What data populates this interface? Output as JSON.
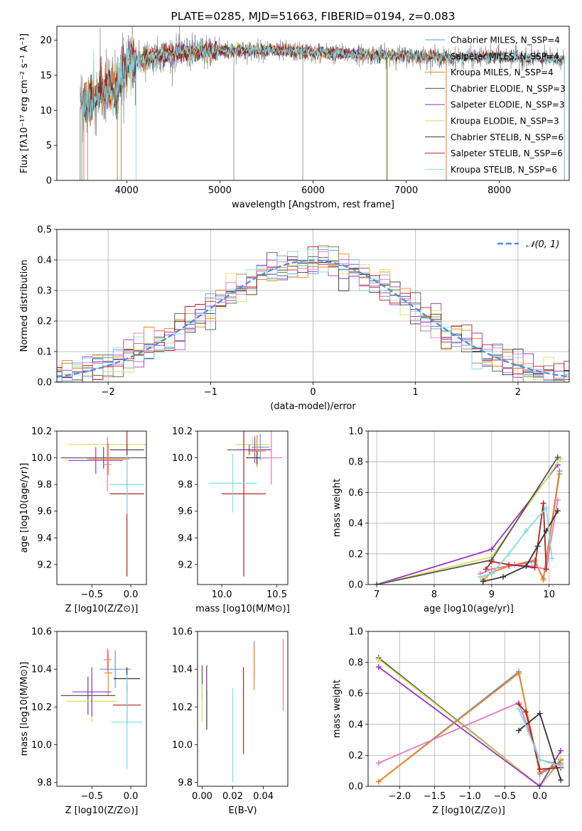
{
  "chart_data": [
    {
      "type": "line",
      "title": "PLATE=0285, MJD=51663, FIBERID=0194, z=0.083",
      "xlabel": "wavelength [Angstrom, rest frame]",
      "ylabel": "Flux [fλ10⁻¹⁷ erg cm⁻² s⁻¹ A⁻¹]",
      "xlim": [
        3250,
        8750
      ],
      "ylim": [
        0,
        22
      ],
      "xticks": [
        4000,
        5000,
        6000,
        7000,
        8000
      ],
      "yticks": [
        0,
        5,
        10,
        15,
        20
      ],
      "grid": false,
      "legend_loc": "right",
      "spectrum_profile": [
        {
          "x": 3500,
          "y": 10.5
        },
        {
          "x": 3700,
          "y": 12.5
        },
        {
          "x": 3900,
          "y": 13.5
        },
        {
          "x": 4000,
          "y": 16.5
        },
        {
          "x": 4200,
          "y": 17.5
        },
        {
          "x": 4500,
          "y": 18.2
        },
        {
          "x": 5000,
          "y": 18.5
        },
        {
          "x": 5500,
          "y": 18.6
        },
        {
          "x": 6000,
          "y": 18.2
        },
        {
          "x": 6500,
          "y": 18.0
        },
        {
          "x": 7000,
          "y": 17.8
        },
        {
          "x": 7500,
          "y": 17.5
        },
        {
          "x": 8000,
          "y": 17.7
        },
        {
          "x": 8500,
          "y": 17.3
        }
      ],
      "series": [
        {
          "name": "Chabrier MILES, N_SSP=4",
          "color": "#6495ed",
          "x_range": [
            3540,
            7430
          ]
        },
        {
          "name": "Salpeter MILES, N_SSP=4",
          "color": "#808080",
          "x_range": [
            3500,
            8700
          ]
        },
        {
          "name": "Kroupa MILES, N_SSP=4",
          "color": "#ff7f0e",
          "x_range": [
            3540,
            7430
          ]
        },
        {
          "name": "Chabrier ELODIE, N_SSP=3",
          "color": "#555555",
          "x_range": [
            3900,
            6800
          ]
        },
        {
          "name": "Salpeter ELODIE, N_SSP=3",
          "color": "#9932cc",
          "x_range": [
            3900,
            6800
          ]
        },
        {
          "name": "Kroupa ELODIE, N_SSP=3",
          "color": "#d4e157",
          "x_range": [
            3900,
            6800
          ]
        },
        {
          "name": "Chabrier STELIB, N_SSP=6",
          "color": "#333333",
          "x_range": [
            3520,
            8700
          ]
        },
        {
          "name": "Salpeter STELIB, N_SSP=6",
          "color": "#b22222",
          "x_range": [
            3520,
            8700
          ]
        },
        {
          "name": "Kroupa STELIB, N_SSP=6",
          "color": "#7fdfe3",
          "x_range": [
            3520,
            8700
          ]
        }
      ]
    },
    {
      "type": "line",
      "xlabel": "(data-model)/error",
      "ylabel": "Normed distribution",
      "xlim": [
        -2.5,
        2.5
      ],
      "ylim": [
        0,
        0.5
      ],
      "xticks": [
        -2,
        -1,
        0,
        1,
        2
      ],
      "yticks": [
        0.0,
        0.1,
        0.2,
        0.3,
        0.4,
        0.5
      ],
      "grid": true,
      "legend_loc": "top-right",
      "gaussian": {
        "name": "𝒩(0, 1)",
        "mean": 0,
        "sigma": 1,
        "color": "#4a90e2"
      },
      "histogram_bin_width": 0.1
    },
    {
      "type": "scatter",
      "xlabel": "Z [log10(Z/Z⊙)]",
      "ylabel": "age  [log10(age/yr)]",
      "xlim": [
        -0.95,
        0.2
      ],
      "ylim": [
        9.05,
        10.2
      ],
      "xticks": [
        -0.5,
        0.0
      ],
      "yticks": [
        9.2,
        9.4,
        9.6,
        9.8,
        10.0,
        10.2
      ],
      "points": [
        {
          "x": -0.35,
          "y": 10.0,
          "xerr": 0.55,
          "yerr": 0.08,
          "color": "#555555"
        },
        {
          "x": -0.3,
          "y": 10.1,
          "xerr": 0.5,
          "yerr": 0.06,
          "color": "#d4e157"
        },
        {
          "x": -0.45,
          "y": 9.98,
          "xerr": 0.35,
          "yerr": 0.1,
          "color": "#9932cc"
        },
        {
          "x": -0.3,
          "y": 9.99,
          "xerr": 0.25,
          "yerr": 0.1,
          "color": "#6495ed"
        },
        {
          "x": -0.29,
          "y": 9.99,
          "xerr": 0.27,
          "yerr": 0.12,
          "color": "#ff7f0e"
        },
        {
          "x": -0.05,
          "y": 10.06,
          "xerr": 0.22,
          "yerr": 0.04,
          "color": "#333333"
        },
        {
          "x": -0.3,
          "y": 9.95,
          "xerr": 0.05,
          "yerr": 0.2,
          "color": "#e377c2"
        },
        {
          "x": -0.05,
          "y": 9.73,
          "xerr": 0.22,
          "yerr": 0.62,
          "color": "#b22222"
        },
        {
          "x": -0.05,
          "y": 9.8,
          "xerr": 0.22,
          "yerr": 0.22,
          "color": "#7fdfe3"
        }
      ]
    },
    {
      "type": "scatter",
      "xlabel": "mass [log10(M/M⊙)]",
      "ylabel": "",
      "xlim": [
        9.78,
        10.6
      ],
      "ylim": [
        9.05,
        10.2
      ],
      "xticks": [
        10.0,
        10.5
      ],
      "yticks": [
        9.2,
        9.4,
        9.6,
        9.8,
        10.0,
        10.2
      ],
      "points": [
        {
          "x": 10.25,
          "y": 10.06,
          "xerr": 0.2,
          "yerr": 0.04,
          "color": "#555555"
        },
        {
          "x": 10.28,
          "y": 10.1,
          "xerr": 0.15,
          "yerr": 0.06,
          "color": "#d4e157"
        },
        {
          "x": 10.3,
          "y": 10.06,
          "xerr": 0.15,
          "yerr": 0.1,
          "color": "#9932cc"
        },
        {
          "x": 10.35,
          "y": 10.08,
          "xerr": 0.08,
          "yerr": 0.1,
          "color": "#6495ed"
        },
        {
          "x": 10.32,
          "y": 10.05,
          "xerr": 0.08,
          "yerr": 0.12,
          "color": "#ff7f0e"
        },
        {
          "x": 10.32,
          "y": 10.0,
          "xerr": 0.1,
          "yerr": 0.05,
          "color": "#333333"
        },
        {
          "x": 10.45,
          "y": 10.0,
          "xerr": 0.1,
          "yerr": 0.2,
          "color": "#e377c2"
        },
        {
          "x": 10.2,
          "y": 9.73,
          "xerr": 0.2,
          "yerr": 0.62,
          "color": "#b22222"
        },
        {
          "x": 10.1,
          "y": 9.81,
          "xerr": 0.22,
          "yerr": 0.22,
          "color": "#7fdfe3"
        }
      ]
    },
    {
      "type": "line",
      "xlabel": "age  [log10(age/yr)]",
      "ylabel": "mass weight",
      "xlim": [
        6.85,
        10.35
      ],
      "ylim": [
        0,
        1.0
      ],
      "xticks": [
        7,
        8,
        9,
        10
      ],
      "yticks": [
        0.0,
        0.2,
        0.4,
        0.6,
        0.8,
        1.0
      ],
      "grid": true,
      "series": [
        {
          "color": "#9932cc",
          "x": [
            7.0,
            9.0,
            10.15
          ],
          "y": [
            0.0,
            0.23,
            0.78
          ]
        },
        {
          "color": "#d4e157",
          "x": [
            7.0,
            9.0,
            10.2
          ],
          "y": [
            0.0,
            0.18,
            0.82
          ]
        },
        {
          "color": "#555555",
          "x": [
            7.0,
            9.0,
            10.15
          ],
          "y": [
            0.0,
            0.16,
            0.83
          ]
        },
        {
          "color": "#6495ed",
          "x": [
            8.85,
            9.0,
            9.3,
            9.75,
            9.9,
            10.18
          ],
          "y": [
            0.03,
            0.08,
            0.12,
            0.15,
            0.04,
            0.74
          ]
        },
        {
          "color": "#ff7f0e",
          "x": [
            8.85,
            9.0,
            9.3,
            9.75,
            9.9,
            10.18
          ],
          "y": [
            0.03,
            0.08,
            0.12,
            0.16,
            0.03,
            0.72
          ]
        },
        {
          "color": "#e377c2",
          "x": [
            8.8,
            9.0,
            9.4,
            9.7,
            9.95,
            10.15
          ],
          "y": [
            0.07,
            0.1,
            0.13,
            0.12,
            0.1,
            0.55
          ]
        },
        {
          "color": "#b22222",
          "x": [
            8.9,
            9.0,
            9.3,
            9.75,
            9.9,
            9.95
          ],
          "y": [
            0.1,
            0.15,
            0.13,
            0.11,
            0.53,
            0.1
          ]
        },
        {
          "color": "#333333",
          "x": [
            8.85,
            9.2,
            9.6,
            9.8,
            9.95,
            10.15
          ],
          "y": [
            0.02,
            0.05,
            0.12,
            0.25,
            0.35,
            0.48
          ]
        },
        {
          "color": "#7fdfe3",
          "x": [
            8.8,
            9.0,
            9.3,
            9.6,
            9.95,
            10.05
          ],
          "y": [
            0.05,
            0.07,
            0.2,
            0.35,
            0.5,
            0.17
          ]
        }
      ]
    },
    {
      "type": "scatter",
      "xlabel": "Z [log10(Z/Z⊙)]",
      "ylabel": "mass [log10(M/M⊙)]",
      "xlim": [
        -0.95,
        0.2
      ],
      "ylim": [
        9.78,
        10.6
      ],
      "xticks": [
        -0.5,
        0.0
      ],
      "yticks": [
        9.8,
        10.0,
        10.2,
        10.4,
        10.6
      ],
      "points": [
        {
          "x": -0.3,
          "y": 10.45,
          "xerr": 0.05,
          "yerr": 0.06,
          "color": "#e377c2"
        },
        {
          "x": -0.2,
          "y": 10.4,
          "xerr": 0.2,
          "yerr": 0.1,
          "color": "#6495ed"
        },
        {
          "x": -0.29,
          "y": 10.38,
          "xerr": 0.05,
          "yerr": 0.12,
          "color": "#ff7f0e"
        },
        {
          "x": -0.05,
          "y": 10.35,
          "xerr": 0.17,
          "yerr": 0.06,
          "color": "#333333"
        },
        {
          "x": -0.55,
          "y": 10.26,
          "xerr": 0.35,
          "yerr": 0.1,
          "color": "#555555"
        },
        {
          "x": -0.5,
          "y": 10.23,
          "xerr": 0.32,
          "yerr": 0.11,
          "color": "#d4e157"
        },
        {
          "x": -0.5,
          "y": 10.28,
          "xerr": 0.25,
          "yerr": 0.13,
          "color": "#9932cc"
        },
        {
          "x": -0.05,
          "y": 10.21,
          "xerr": 0.18,
          "yerr": 0.1,
          "color": "#b22222"
        },
        {
          "x": -0.05,
          "y": 10.12,
          "xerr": 0.2,
          "yerr": 0.25,
          "color": "#7fdfe3"
        }
      ]
    },
    {
      "type": "scatter",
      "xlabel": "E(B-V)",
      "ylabel": "",
      "xlim": [
        -0.003,
        0.056
      ],
      "ylim": [
        9.78,
        10.6
      ],
      "xticks": [
        0.0,
        0.02,
        0.04
      ],
      "yticks": [
        9.8,
        10.0,
        10.2,
        10.4,
        10.6
      ],
      "points": [
        {
          "x": 0.0,
          "y": 10.33,
          "yerr": 0.09,
          "color": "#555555"
        },
        {
          "x": 0.0,
          "y": 10.22,
          "yerr": 0.1,
          "color": "#d4e157"
        },
        {
          "x": 0.003,
          "y": 10.25,
          "yerr": 0.17,
          "color": "#333333"
        },
        {
          "x": 0.003,
          "y": 10.35,
          "yerr": 0.06,
          "color": "#9932cc"
        },
        {
          "x": 0.02,
          "y": 10.05,
          "yerr": 0.25,
          "color": "#7fdfe3"
        },
        {
          "x": 0.027,
          "y": 10.18,
          "yerr": 0.23,
          "color": "#b22222"
        },
        {
          "x": 0.034,
          "y": 10.45,
          "yerr": 0.1,
          "color": "#6495ed"
        },
        {
          "x": 0.034,
          "y": 10.41,
          "yerr": 0.12,
          "color": "#ff7f0e"
        },
        {
          "x": 0.053,
          "y": 10.37,
          "yerr": 0.19,
          "color": "#e377c2"
        }
      ]
    },
    {
      "type": "line",
      "xlabel": "Z [log10(Z/Z⊙)]",
      "ylabel": "mass weight",
      "xlim": [
        -2.45,
        0.42
      ],
      "ylim": [
        0,
        1.0
      ],
      "xticks": [
        -2.0,
        -1.5,
        -1.0,
        -0.5,
        0.0
      ],
      "yticks": [
        0.0,
        0.2,
        0.4,
        0.6,
        0.8,
        1.0
      ],
      "grid": true,
      "series": [
        {
          "color": "#555555",
          "x": [
            -2.3,
            0.0,
            0.3
          ],
          "y": [
            0.83,
            0.0,
            0.17
          ]
        },
        {
          "color": "#d4e157",
          "x": [
            -2.3,
            0.0,
            0.3
          ],
          "y": [
            0.82,
            0.0,
            0.18
          ]
        },
        {
          "color": "#9932cc",
          "x": [
            -2.3,
            0.0,
            0.3
          ],
          "y": [
            0.77,
            0.0,
            0.23
          ]
        },
        {
          "color": "#6495ed",
          "x": [
            -2.3,
            -0.3,
            0.0,
            0.3
          ],
          "y": [
            0.03,
            0.74,
            0.08,
            0.15
          ]
        },
        {
          "color": "#ff7f0e",
          "x": [
            -2.3,
            -0.3,
            0.0,
            0.3
          ],
          "y": [
            0.03,
            0.73,
            0.09,
            0.15
          ]
        },
        {
          "color": "#e377c2",
          "x": [
            -2.3,
            -0.3,
            0.0,
            0.3
          ],
          "y": [
            0.15,
            0.54,
            0.17,
            0.14
          ]
        },
        {
          "color": "#b22222",
          "x": [
            -0.3,
            -0.2,
            0.0,
            0.3
          ],
          "y": [
            0.53,
            0.48,
            0.11,
            0.12
          ]
        },
        {
          "color": "#333333",
          "x": [
            -0.3,
            0.0,
            0.3
          ],
          "y": [
            0.36,
            0.47,
            0.04
          ]
        },
        {
          "color": "#7fdfe3",
          "x": [
            -0.3,
            0.0,
            0.3
          ],
          "y": [
            0.5,
            0.17,
            0.13
          ]
        }
      ]
    }
  ]
}
